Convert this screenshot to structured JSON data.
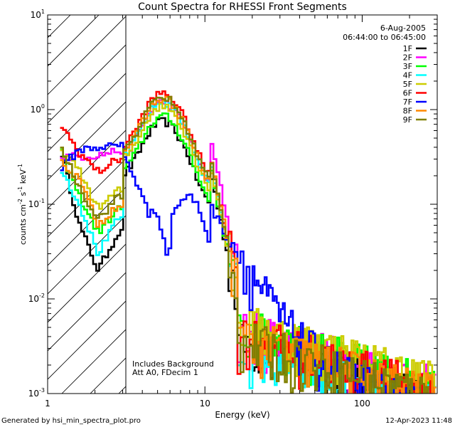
{
  "chart_data": {
    "type": "line",
    "title": "Count Spectra for RHESSI Front Segments",
    "xlabel": "Energy (keV)",
    "ylabel_parts": [
      "counts cm",
      "-2",
      " s",
      "-1",
      " keV",
      "-1"
    ],
    "xscale": "log",
    "yscale": "log",
    "xlim": [
      1,
      300
    ],
    "ylim": [
      0.001,
      10
    ],
    "x_ticks": [
      {
        "value": 1,
        "label": "1"
      },
      {
        "value": 10,
        "label": "10"
      },
      {
        "value": 100,
        "label": "100"
      }
    ],
    "y_ticks": [
      {
        "value": 0.001,
        "base": "10",
        "exp": "-3"
      },
      {
        "value": 0.01,
        "base": "10",
        "exp": "-2"
      },
      {
        "value": 0.1,
        "base": "10",
        "exp": "-1"
      },
      {
        "value": 1,
        "base": "10",
        "exp": "0"
      },
      {
        "value": 10,
        "base": "10",
        "exp": "1"
      }
    ],
    "excluded_region": {
      "x_from": 1,
      "x_to": 3,
      "fill": "hatched"
    },
    "date": "6-Aug-2005",
    "time_range": "06:44:00 to 06:45:00",
    "annotations": [
      "Includes Background",
      "Att A0, FDecim 1"
    ],
    "legend_position": "top-right",
    "series": [
      {
        "name": "1F",
        "color": "#000000",
        "low": [
          0.4,
          0.06,
          0.02,
          0.05
        ],
        "peak": 0.75,
        "dip": 0.2,
        "tail": 0.003
      },
      {
        "name": "2F",
        "color": "#ff00ff",
        "low": [
          0.32,
          0.32,
          0.33,
          0.37
        ],
        "peak": 1.2,
        "dip": 0.45,
        "tail": 0.004
      },
      {
        "name": "3F",
        "color": "#00ff00",
        "low": [
          0.38,
          0.12,
          0.05,
          0.09
        ],
        "peak": 0.85,
        "dip": 0.22,
        "tail": 0.004
      },
      {
        "name": "4F",
        "color": "#00ffff",
        "low": [
          0.25,
          0.1,
          0.03,
          0.07
        ],
        "peak": 1.2,
        "dip": 0.26,
        "tail": 0.0025
      },
      {
        "name": "5F",
        "color": "#cccc00",
        "low": [
          0.4,
          0.22,
          0.09,
          0.14
        ],
        "peak": 1.1,
        "dip": 0.24,
        "tail": 0.0045
      },
      {
        "name": "6F",
        "color": "#ff0000",
        "low": [
          0.7,
          0.35,
          0.22,
          0.3
        ],
        "peak": 1.5,
        "dip": 0.3,
        "tail": 0.0035
      },
      {
        "name": "7F",
        "color": "#0000ff",
        "low": [
          0.24,
          0.38,
          0.4,
          0.42
        ],
        "peak": 0.08,
        "dip": 0.09,
        "tail": 0.0028
      },
      {
        "name": "8F",
        "color": "#ff8800",
        "low": [
          0.3,
          0.18,
          0.06,
          0.1
        ],
        "peak": 1.3,
        "dip": 0.28,
        "tail": 0.0032
      },
      {
        "name": "9F",
        "color": "#808000",
        "low": [
          0.43,
          0.15,
          0.07,
          0.12
        ],
        "peak": 1.35,
        "dip": 0.27,
        "tail": 0.003
      }
    ]
  },
  "footer": {
    "generated_by": "Generated by hsi_min_spectra_plot.pro",
    "timestamp": "12-Apr-2023 11:48"
  }
}
